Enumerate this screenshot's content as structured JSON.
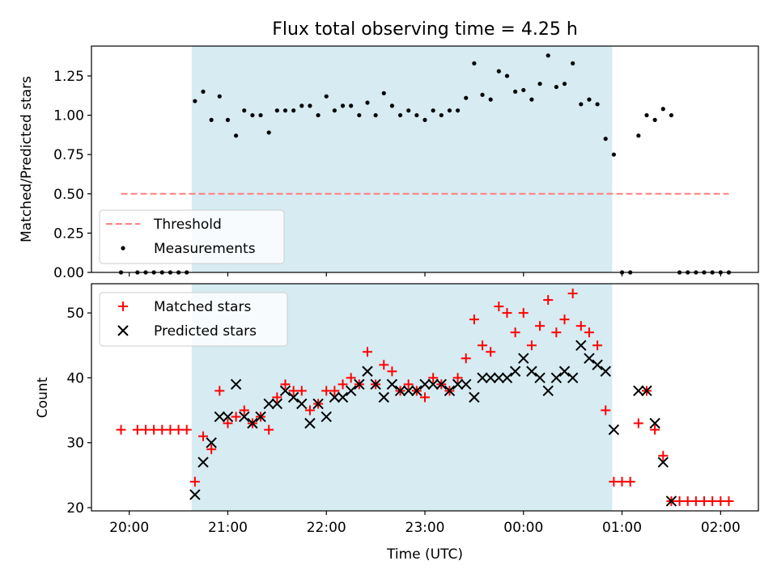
{
  "chart_data": [
    {
      "type": "scatter",
      "title": "Flux total observing time = 4.25 h",
      "ylabel": "Matched/Predicted stars",
      "ylim": [
        0,
        1.44
      ],
      "yticks": [
        0.0,
        0.25,
        0.5,
        0.75,
        1.0,
        1.25
      ],
      "ytick_labels": [
        "0.00",
        "0.25",
        "0.50",
        "0.75",
        "1.00",
        "1.25"
      ],
      "xlim": [
        "19:37",
        "02:23"
      ],
      "shaded_window": [
        "20:38",
        "00:54"
      ],
      "shade_color": "#add8e6",
      "legend_position": "lower-left",
      "series": [
        {
          "name": "Threshold",
          "kind": "line",
          "style": "dashed",
          "color": "#ff7f7f",
          "x": [
            "19:55",
            "02:05"
          ],
          "y": [
            0.5,
            0.5
          ]
        },
        {
          "name": "Measurements",
          "kind": "scatter",
          "marker": "dot",
          "color": "#000000",
          "x": [
            "19:55",
            "20:05",
            "20:10",
            "20:15",
            "20:20",
            "20:25",
            "20:30",
            "20:35",
            "20:40",
            "20:45",
            "20:50",
            "20:55",
            "21:00",
            "21:05",
            "21:10",
            "21:15",
            "21:20",
            "21:25",
            "21:30",
            "21:35",
            "21:40",
            "21:45",
            "21:50",
            "21:55",
            "22:00",
            "22:05",
            "22:10",
            "22:15",
            "22:20",
            "22:25",
            "22:30",
            "22:35",
            "22:40",
            "22:45",
            "22:50",
            "22:55",
            "23:00",
            "23:05",
            "23:10",
            "23:15",
            "23:20",
            "23:25",
            "23:30",
            "23:35",
            "23:40",
            "23:45",
            "23:50",
            "23:55",
            "00:00",
            "00:05",
            "00:10",
            "00:15",
            "00:20",
            "00:25",
            "00:30",
            "00:35",
            "00:40",
            "00:45",
            "00:50",
            "00:55",
            "01:00",
            "01:05",
            "01:10",
            "01:15",
            "01:20",
            "01:25",
            "01:30",
            "01:35",
            "01:40",
            "01:45",
            "01:50",
            "01:55",
            "02:00",
            "02:05"
          ],
          "y": [
            0,
            0,
            0,
            0,
            0,
            0,
            0,
            0,
            1.09,
            1.15,
            0.97,
            1.12,
            0.97,
            0.87,
            1.03,
            1.0,
            1.0,
            0.89,
            1.03,
            1.03,
            1.03,
            1.06,
            1.06,
            1.0,
            1.12,
            1.03,
            1.06,
            1.06,
            1.0,
            1.08,
            1.0,
            1.14,
            1.06,
            1.0,
            1.03,
            1.0,
            0.97,
            1.03,
            1.0,
            1.03,
            1.03,
            1.11,
            1.33,
            1.13,
            1.1,
            1.28,
            1.25,
            1.15,
            1.16,
            1.1,
            1.2,
            1.38,
            1.18,
            1.2,
            1.33,
            1.07,
            1.1,
            1.07,
            0.85,
            0.75,
            0,
            0,
            0.87,
            1.0,
            0.97,
            1.04,
            1.0,
            0,
            0,
            0,
            0,
            0,
            0,
            0
          ]
        }
      ]
    },
    {
      "type": "scatter",
      "xlabel": "Time (UTC)",
      "ylabel": "Count",
      "ylim": [
        19.5,
        54.5
      ],
      "yticks": [
        20,
        30,
        40,
        50
      ],
      "ytick_labels": [
        "20",
        "30",
        "40",
        "50"
      ],
      "xlim": [
        "19:37",
        "02:23"
      ],
      "xticks": [
        "20:00",
        "21:00",
        "22:00",
        "23:00",
        "00:00",
        "01:00",
        "02:00"
      ],
      "xtick_labels": [
        "20:00",
        "21:00",
        "22:00",
        "23:00",
        "00:00",
        "01:00",
        "02:00"
      ],
      "shaded_window": [
        "20:38",
        "00:54"
      ],
      "shade_color": "#add8e6",
      "legend_position": "top-left",
      "series": [
        {
          "name": "Matched stars",
          "marker": "plus",
          "color": "#ff0000",
          "x": [
            "19:55",
            "20:05",
            "20:10",
            "20:15",
            "20:20",
            "20:25",
            "20:30",
            "20:35",
            "20:40",
            "20:45",
            "20:50",
            "20:55",
            "21:00",
            "21:05",
            "21:10",
            "21:15",
            "21:20",
            "21:25",
            "21:30",
            "21:35",
            "21:40",
            "21:45",
            "21:50",
            "21:55",
            "22:00",
            "22:05",
            "22:10",
            "22:15",
            "22:20",
            "22:25",
            "22:30",
            "22:35",
            "22:40",
            "22:45",
            "22:50",
            "22:55",
            "23:00",
            "23:05",
            "23:10",
            "23:15",
            "23:20",
            "23:25",
            "23:30",
            "23:35",
            "23:40",
            "23:45",
            "23:50",
            "23:55",
            "00:00",
            "00:05",
            "00:10",
            "00:15",
            "00:20",
            "00:25",
            "00:30",
            "00:35",
            "00:40",
            "00:45",
            "00:50",
            "00:55",
            "01:00",
            "01:05",
            "01:10",
            "01:15",
            "01:20",
            "01:25",
            "01:30",
            "01:35",
            "01:40",
            "01:45",
            "01:50",
            "01:55",
            "02:00",
            "02:05"
          ],
          "y": [
            32,
            32,
            32,
            32,
            32,
            32,
            32,
            32,
            24,
            31,
            29,
            38,
            33,
            34,
            35,
            33,
            34,
            32,
            37,
            39,
            38,
            38,
            35,
            36,
            38,
            38,
            39,
            40,
            39,
            44,
            39,
            42,
            41,
            38,
            39,
            38,
            37,
            40,
            39,
            38,
            40,
            43,
            49,
            45,
            44,
            51,
            50,
            47,
            50,
            45,
            48,
            52,
            47,
            49,
            53,
            48,
            47,
            45,
            35,
            24,
            24,
            24,
            33,
            38,
            32,
            28,
            21,
            21,
            21,
            21,
            21,
            21,
            21,
            21
          ]
        },
        {
          "name": "Predicted stars",
          "marker": "x",
          "color": "#000000",
          "x": [
            "20:40",
            "20:45",
            "20:50",
            "20:55",
            "21:00",
            "21:05",
            "21:10",
            "21:15",
            "21:20",
            "21:25",
            "21:30",
            "21:35",
            "21:40",
            "21:45",
            "21:50",
            "21:55",
            "22:00",
            "22:05",
            "22:10",
            "22:15",
            "22:20",
            "22:25",
            "22:30",
            "22:35",
            "22:40",
            "22:45",
            "22:50",
            "22:55",
            "23:00",
            "23:05",
            "23:10",
            "23:15",
            "23:20",
            "23:25",
            "23:30",
            "23:35",
            "23:40",
            "23:45",
            "23:50",
            "23:55",
            "00:00",
            "00:05",
            "00:10",
            "00:15",
            "00:20",
            "00:25",
            "00:30",
            "00:35",
            "00:40",
            "00:45",
            "00:50",
            "00:55",
            "01:10",
            "01:15",
            "01:20",
            "01:25",
            "01:30"
          ],
          "y": [
            22,
            27,
            30,
            34,
            34,
            39,
            34,
            33,
            34,
            36,
            36,
            38,
            37,
            36,
            33,
            36,
            34,
            37,
            37,
            38,
            39,
            41,
            39,
            37,
            39,
            38,
            38,
            38,
            39,
            39,
            39,
            38,
            39,
            39,
            37,
            40,
            40,
            40,
            40,
            41,
            43,
            41,
            40,
            38,
            40,
            41,
            40,
            45,
            43,
            42,
            41,
            32,
            38,
            38,
            33,
            27,
            21
          ]
        }
      ]
    }
  ]
}
